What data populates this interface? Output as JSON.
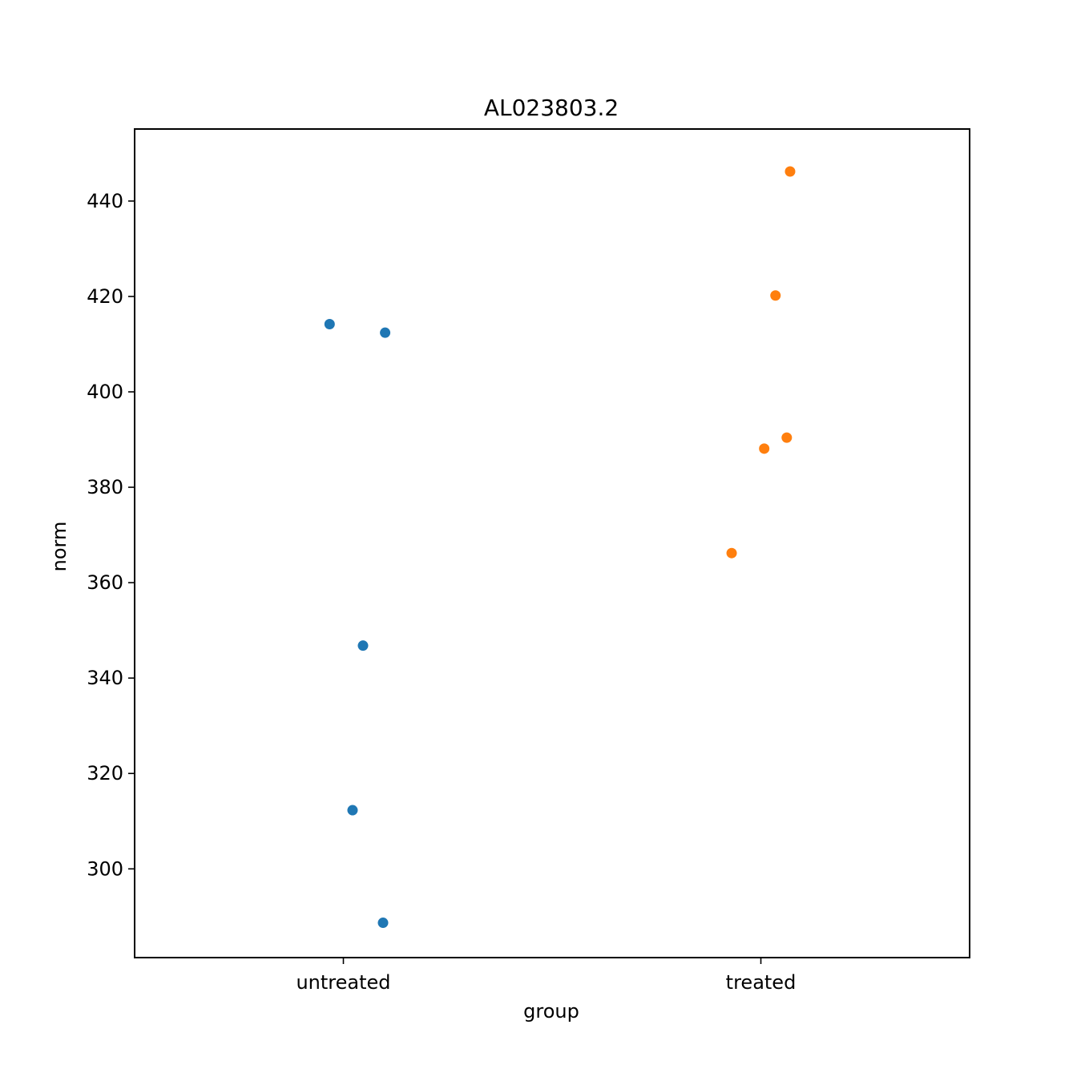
{
  "chart_data": {
    "type": "scatter",
    "title": "AL023803.2",
    "xlabel": "group",
    "ylabel": "norm",
    "categories": [
      "untreated",
      "treated"
    ],
    "ylim": [
      281.4,
      455.1
    ],
    "yticks": [
      300,
      320,
      340,
      360,
      380,
      400,
      420,
      440
    ],
    "grid": false,
    "series": [
      {
        "category": "untreated",
        "color": "#1f77b4",
        "points": [
          {
            "jitter": -0.033,
            "y": 414.2
          },
          {
            "jitter": 0.1,
            "y": 412.4
          },
          {
            "jitter": 0.047,
            "y": 346.8
          },
          {
            "jitter": 0.022,
            "y": 312.3
          },
          {
            "jitter": 0.095,
            "y": 288.7
          }
        ]
      },
      {
        "category": "treated",
        "color": "#ff7f0e",
        "points": [
          {
            "jitter": 0.07,
            "y": 446.2
          },
          {
            "jitter": 0.035,
            "y": 420.2
          },
          {
            "jitter": 0.062,
            "y": 390.4
          },
          {
            "jitter": 0.008,
            "y": 388.1
          },
          {
            "jitter": -0.07,
            "y": 366.2
          }
        ]
      }
    ]
  }
}
